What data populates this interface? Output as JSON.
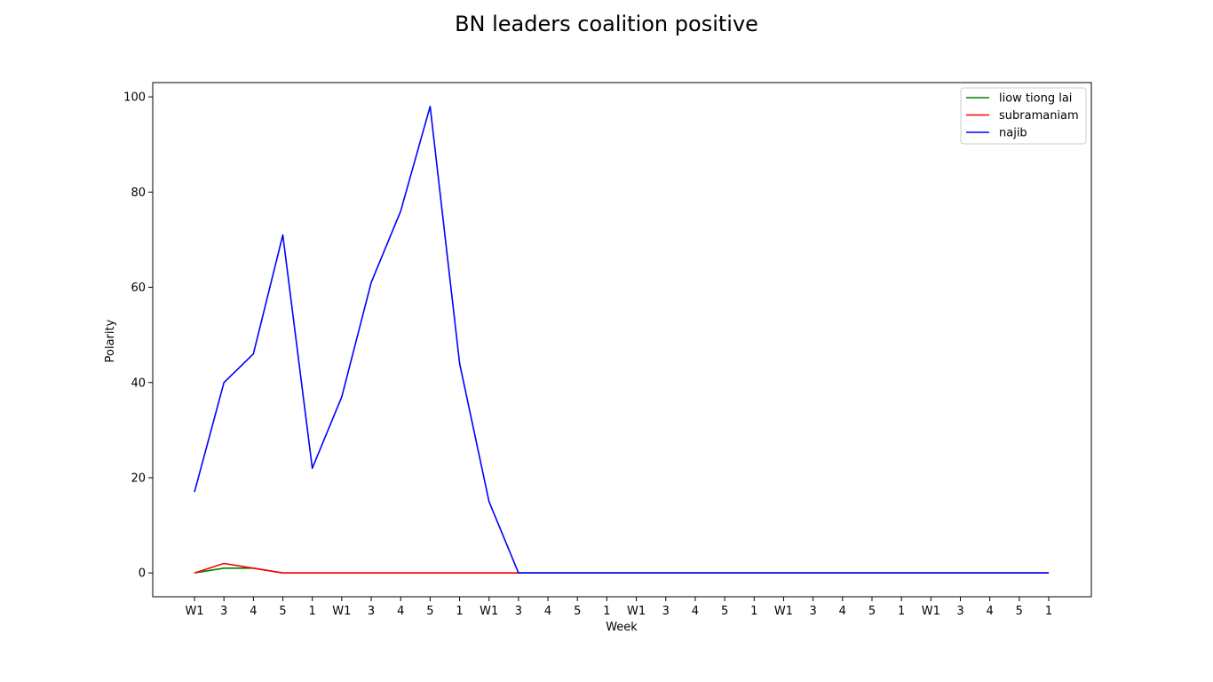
{
  "chart_data": {
    "type": "line",
    "title": "BN leaders coalition positive",
    "xlabel": "Week",
    "ylabel": "Polarity",
    "categories": [
      "W1",
      "3",
      "4",
      "5",
      "1",
      "W1",
      "3",
      "4",
      "5",
      "1",
      "W1",
      "3",
      "4",
      "5",
      "1",
      "W1",
      "3",
      "4",
      "5",
      "1",
      "W1",
      "3",
      "4",
      "5",
      "1",
      "W1",
      "3",
      "4",
      "5",
      "1"
    ],
    "yticks": [
      0,
      20,
      40,
      60,
      80,
      100
    ],
    "ylim": [
      -5,
      103
    ],
    "grid": false,
    "legend_position": "top-right",
    "series": [
      {
        "name": "liow tiong lai",
        "color": "#008000",
        "values": [
          0,
          1,
          1,
          0,
          0,
          0,
          0,
          0,
          0,
          0,
          0,
          0,
          0,
          0,
          0,
          0,
          0,
          0,
          0,
          0,
          0,
          0,
          0,
          0,
          0,
          0,
          0,
          0,
          0,
          0
        ]
      },
      {
        "name": "subramaniam",
        "color": "#ff0000",
        "values": [
          0,
          2,
          1,
          0,
          0,
          0,
          0,
          0,
          0,
          0,
          0,
          0,
          0,
          0,
          0,
          0,
          0,
          0,
          0,
          0,
          0,
          0,
          0,
          0,
          0,
          0,
          0,
          0,
          0,
          0
        ]
      },
      {
        "name": "najib",
        "color": "#0000ff",
        "values": [
          17,
          40,
          46,
          71,
          22,
          37,
          61,
          76,
          98,
          44,
          15,
          0,
          0,
          0,
          0,
          0,
          0,
          0,
          0,
          0,
          0,
          0,
          0,
          0,
          0,
          0,
          0,
          0,
          0,
          0
        ]
      }
    ]
  }
}
